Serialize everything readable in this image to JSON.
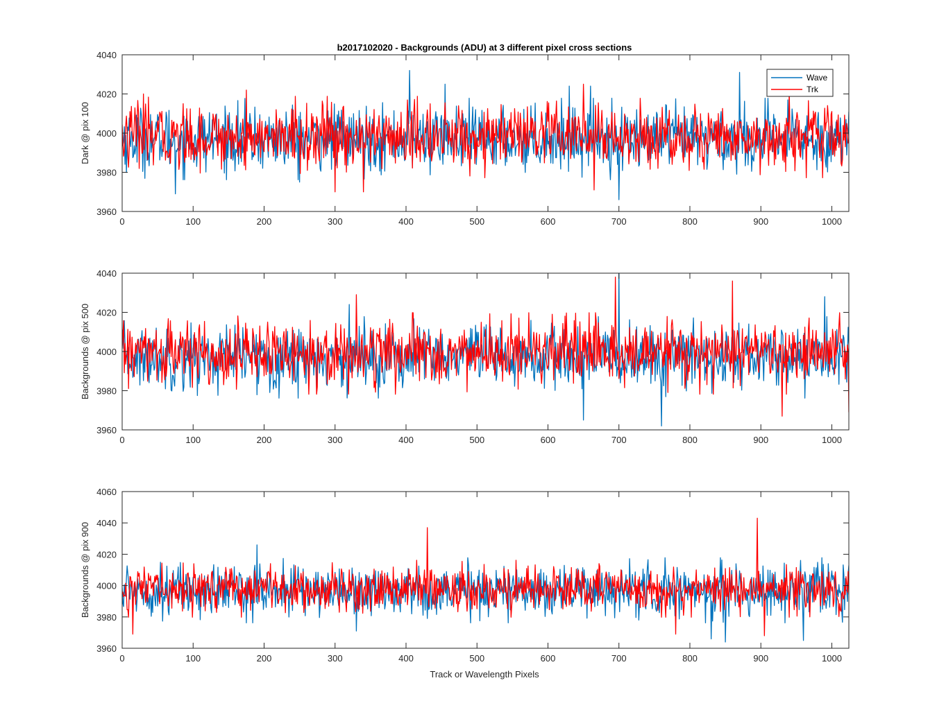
{
  "figure": {
    "title": "b2017102020 - Backgrounds (ADU) at 3 different pixel cross sections",
    "xlabel": "Track or Wavelength Pixels"
  },
  "legend": {
    "items": [
      {
        "label": "Wave",
        "color": "#0072BD"
      },
      {
        "label": "Trk",
        "color": "#FF0000"
      }
    ],
    "location": "top-right of first panel"
  },
  "chart_data": [
    {
      "type": "line",
      "ylabel": "Dark @ pix 100",
      "xlim": [
        0,
        1024
      ],
      "ylim": [
        3960,
        4040
      ],
      "xticks": [
        "0",
        "100",
        "200",
        "300",
        "400",
        "500",
        "600",
        "700",
        "800",
        "900",
        "1000"
      ],
      "yticks": [
        "3960",
        "3980",
        "4000",
        "4020",
        "4040"
      ],
      "series": [
        {
          "name": "Wave",
          "color": "#0072BD",
          "mean": 3997,
          "sd": 8,
          "spikes": [
            [
              405,
              4032
            ],
            [
              455,
              4025
            ],
            [
              630,
              4024
            ],
            [
              660,
              4024
            ],
            [
              870,
              4031
            ],
            [
              700,
              3966
            ],
            [
              75,
              3969
            ],
            [
              250,
              3975
            ]
          ]
        },
        {
          "name": "Trk",
          "color": "#FF0000",
          "mean": 3998,
          "sd": 8,
          "spikes": [
            [
              30,
              4020
            ],
            [
              175,
              4022
            ],
            [
              300,
              3970
            ],
            [
              340,
              3970
            ],
            [
              650,
              4025
            ],
            [
              665,
              3971
            ],
            [
              940,
              4021
            ]
          ]
        }
      ]
    },
    {
      "type": "line",
      "ylabel": "Backgrounds @ pix 500",
      "xlim": [
        0,
        1024
      ],
      "ylim": [
        3960,
        4040
      ],
      "xticks": [
        "0",
        "100",
        "200",
        "300",
        "400",
        "500",
        "600",
        "700",
        "800",
        "900",
        "1000"
      ],
      "yticks": [
        "3960",
        "3980",
        "4000",
        "4020",
        "4040"
      ],
      "series": [
        {
          "name": "Wave",
          "color": "#0072BD",
          "mean": 3997,
          "sd": 8,
          "spikes": [
            [
              320,
              4024
            ],
            [
              650,
              3965
            ],
            [
              760,
              3962
            ],
            [
              990,
              4028
            ],
            [
              700,
              4040
            ]
          ]
        },
        {
          "name": "Trk",
          "color": "#FF0000",
          "mean": 3999,
          "sd": 8,
          "spikes": [
            [
              330,
              4029
            ],
            [
              695,
              4038
            ],
            [
              860,
              4036
            ],
            [
              930,
              3967
            ],
            [
              1024,
              3969
            ]
          ]
        }
      ]
    },
    {
      "type": "line",
      "ylabel": "Backgrounds @ pix 900",
      "xlim": [
        0,
        1024
      ],
      "ylim": [
        3960,
        4060
      ],
      "xticks": [
        "0",
        "100",
        "200",
        "300",
        "400",
        "500",
        "600",
        "700",
        "800",
        "900",
        "1000"
      ],
      "yticks": [
        "3960",
        "3980",
        "4000",
        "4020",
        "4040",
        "4060"
      ],
      "series": [
        {
          "name": "Wave",
          "color": "#0072BD",
          "mean": 3997,
          "sd": 8,
          "spikes": [
            [
              190,
              4026
            ],
            [
              330,
              3971
            ],
            [
              850,
              3964
            ],
            [
              960,
              3965
            ],
            [
              830,
              3966
            ]
          ]
        },
        {
          "name": "Trk",
          "color": "#FF0000",
          "mean": 3998,
          "sd": 7,
          "spikes": [
            [
              430,
              4037
            ],
            [
              895,
              4043
            ],
            [
              15,
              3969
            ],
            [
              780,
              3969
            ],
            [
              905,
              3968
            ]
          ]
        }
      ]
    }
  ]
}
